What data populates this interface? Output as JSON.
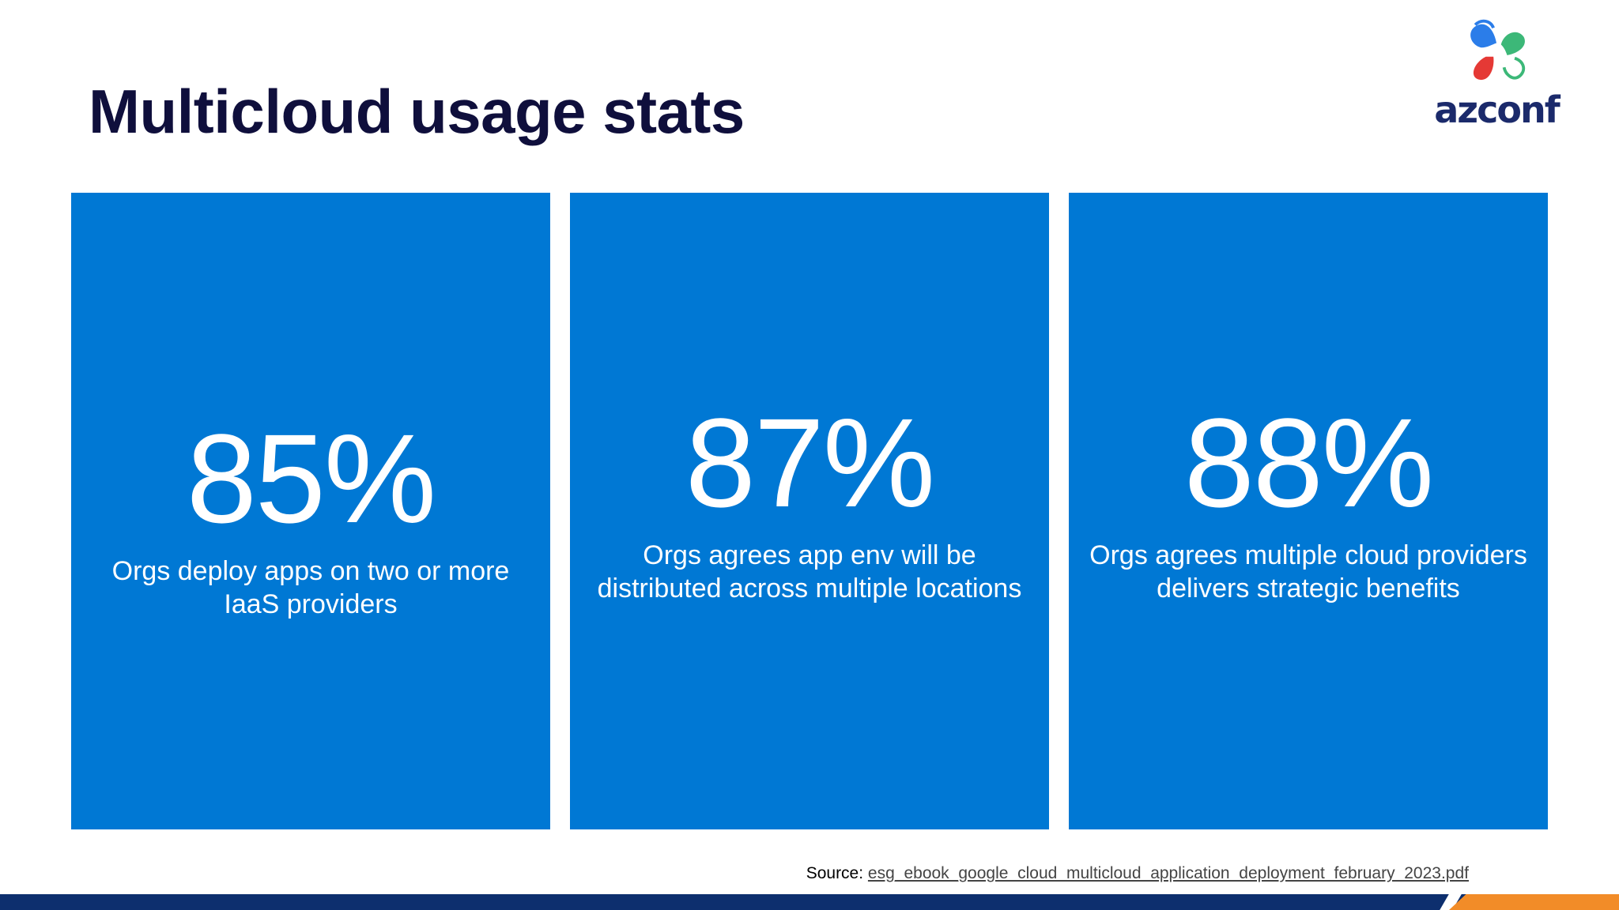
{
  "slide": {
    "title": "Multicloud usage stats"
  },
  "logo": {
    "text": "azconf",
    "icon": "azconf-logo-icon",
    "colors": [
      "#2b7de9",
      "#3cb878",
      "#e53935"
    ]
  },
  "stats": [
    {
      "value": "85%",
      "description": "Orgs deploy apps on two or more IaaS providers"
    },
    {
      "value": "87%",
      "description": "Orgs agrees app env will be distributed across multiple locations"
    },
    {
      "value": "88%",
      "description": "Orgs agrees multiple cloud providers delivers strategic benefits"
    }
  ],
  "source": {
    "label": "Source:",
    "link_text": "esg_ebook_google_cloud_multicloud_application_deployment_february_2023.pdf"
  },
  "colors": {
    "card": "#0078d4",
    "title": "#0f0f3c",
    "footer": "#0d2f6e",
    "accent": "#f28c28"
  }
}
